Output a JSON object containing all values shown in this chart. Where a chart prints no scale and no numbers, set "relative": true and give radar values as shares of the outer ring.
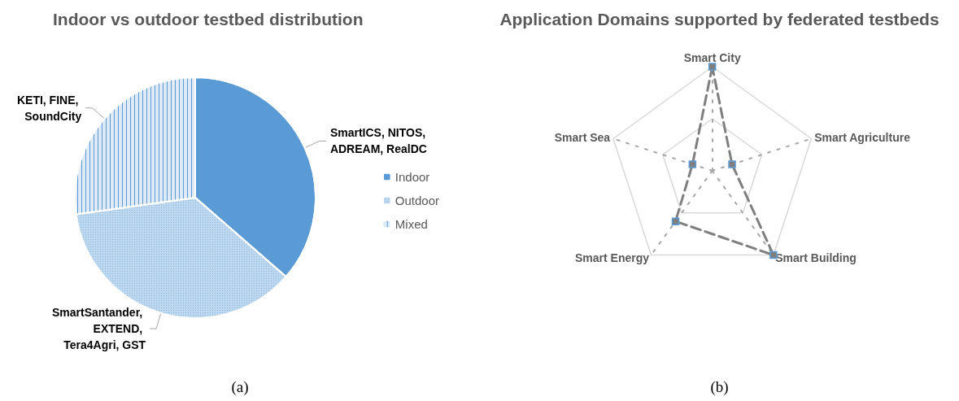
{
  "chart_data": [
    {
      "type": "pie",
      "title": "Indoor vs outdoor testbed distribution",
      "categories": [
        "Indoor",
        "Outdoor",
        "Mixed"
      ],
      "values": [
        36.4,
        36.4,
        27.2
      ],
      "colors": [
        "#5b9bd5",
        "#bdd7ee",
        "#deebf7"
      ],
      "value_labels": [
        "SmartICS, NITOS, ADREAM, RealDC",
        "SmartSantander, EXTEND, Tera4Agri, GST",
        "KETI, FINE, SoundCity"
      ],
      "legend": "right",
      "annotations": [
        "(a)"
      ]
    },
    {
      "type": "radar",
      "title": "Application Domains supported by federated testbeds",
      "categories": [
        "Smart City",
        "Smart Agriculture",
        "Smart Building",
        "Smart Energy",
        "Smart Sea"
      ],
      "relative": true,
      "series": [
        {
          "color": "#7f7f7f",
          "values": [
            1,
            0.2,
            1,
            0.6,
            0.2
          ]
        }
      ],
      "marker": "square",
      "line_style": "dashed",
      "legend": false,
      "annotations": [
        "(b)"
      ]
    }
  ]
}
